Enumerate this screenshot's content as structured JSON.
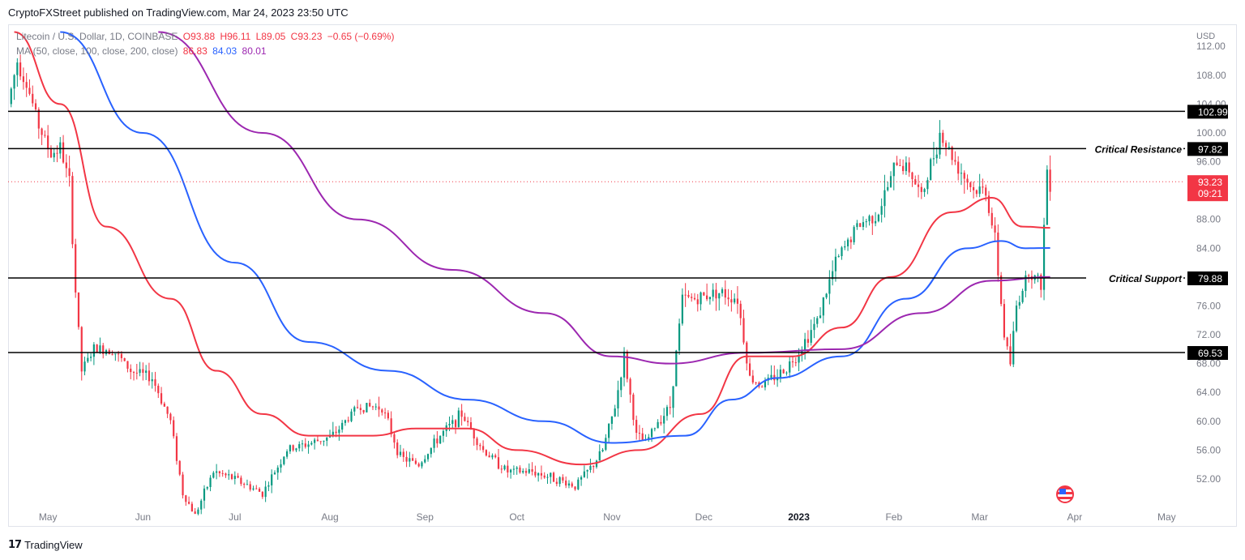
{
  "publisher_line": "CryptoFXStreet published on TradingView.com, Mar 24, 2023 23:50 UTC",
  "legend": {
    "symbol": "Litecoin / U.S. Dollar, 1D, COINBASE",
    "open": "O93.88",
    "high": "H96.11",
    "low": "L89.05",
    "close": "C93.23",
    "change": "−0.65 (−0.69%)",
    "ma_label": "MA (50, close, 100, close, 200, close)",
    "ma50": "86.83",
    "ma100": "84.03",
    "ma200": "80.01"
  },
  "axis_unit": "USD",
  "brand": "TradingView",
  "colors": {
    "up": "#089981",
    "down": "#f23645",
    "ma50": "#f23645",
    "ma100": "#2962ff",
    "ma200": "#9c27b0"
  },
  "chart_data": {
    "type": "candlestick",
    "title": "Litecoin / U.S. Dollar, 1D, COINBASE",
    "ylabel": "USD",
    "ylim": [
      48,
      114
    ],
    "y_ticks": [
      52,
      56,
      60,
      64,
      68,
      72,
      76,
      80,
      84,
      88,
      92,
      96,
      100,
      104,
      108,
      112
    ],
    "x_ticks": [
      "May",
      "Jun",
      "Jul",
      "Aug",
      "Sep",
      "Oct",
      "Nov",
      "Dec",
      "2023",
      "Feb",
      "Mar",
      "Apr",
      "May"
    ],
    "horizontal_levels": [
      {
        "value": 102.99,
        "label": "102.99"
      },
      {
        "value": 97.82,
        "label": "97.82",
        "annotation": "Critical Resistance"
      },
      {
        "value": 79.88,
        "label": "79.88",
        "annotation": "Critical Support"
      },
      {
        "value": 69.53,
        "label": "69.53"
      }
    ],
    "last_price": {
      "value": 93.23,
      "label": "93.23",
      "countdown": "09:21"
    },
    "price_path": [
      [
        "2022-04-18",
        104
      ],
      [
        "2022-04-21",
        110
      ],
      [
        "2022-04-24",
        107
      ],
      [
        "2022-04-28",
        101
      ],
      [
        "2022-05-02",
        97
      ],
      [
        "2022-05-05",
        98
      ],
      [
        "2022-05-08",
        93
      ],
      [
        "2022-05-10",
        78
      ],
      [
        "2022-05-12",
        67
      ],
      [
        "2022-05-16",
        70
      ],
      [
        "2022-05-22",
        70
      ],
      [
        "2022-05-28",
        67
      ],
      [
        "2022-06-04",
        66
      ],
      [
        "2022-06-10",
        60
      ],
      [
        "2022-06-14",
        50
      ],
      [
        "2022-06-18",
        47
      ],
      [
        "2022-06-24",
        53
      ],
      [
        "2022-07-01",
        52
      ],
      [
        "2022-07-10",
        50
      ],
      [
        "2022-07-18",
        56
      ],
      [
        "2022-07-26",
        57
      ],
      [
        "2022-08-02",
        58
      ],
      [
        "2022-08-10",
        62
      ],
      [
        "2022-08-18",
        62
      ],
      [
        "2022-08-24",
        55
      ],
      [
        "2022-08-30",
        54
      ],
      [
        "2022-09-06",
        58
      ],
      [
        "2022-09-13",
        61
      ],
      [
        "2022-09-20",
        56
      ],
      [
        "2022-09-28",
        53
      ],
      [
        "2022-10-06",
        53
      ],
      [
        "2022-10-14",
        52
      ],
      [
        "2022-10-20",
        51
      ],
      [
        "2022-10-26",
        54
      ],
      [
        "2022-10-29",
        56
      ],
      [
        "2022-11-02",
        62
      ],
      [
        "2022-11-05",
        69
      ],
      [
        "2022-11-09",
        58
      ],
      [
        "2022-11-12",
        57
      ],
      [
        "2022-11-16",
        60
      ],
      [
        "2022-11-20",
        62
      ],
      [
        "2022-11-24",
        77
      ],
      [
        "2022-11-29",
        77
      ],
      [
        "2022-12-05",
        78
      ],
      [
        "2022-12-12",
        77
      ],
      [
        "2022-12-16",
        66
      ],
      [
        "2022-12-20",
        65
      ],
      [
        "2022-12-27",
        67
      ],
      [
        "2022-12-31",
        69
      ],
      [
        "2023-01-07",
        74
      ],
      [
        "2023-01-13",
        82
      ],
      [
        "2023-01-20",
        87
      ],
      [
        "2023-01-27",
        89
      ],
      [
        "2023-02-02",
        96
      ],
      [
        "2023-02-06",
        95
      ],
      [
        "2023-02-10",
        91
      ],
      [
        "2023-02-16",
        100
      ],
      [
        "2023-02-21",
        96
      ],
      [
        "2023-02-27",
        92
      ],
      [
        "2023-03-03",
        92
      ],
      [
        "2023-03-06",
        85
      ],
      [
        "2023-03-09",
        72
      ],
      [
        "2023-03-11",
        68
      ],
      [
        "2023-03-13",
        76
      ],
      [
        "2023-03-17",
        81
      ],
      [
        "2023-03-21",
        79
      ],
      [
        "2023-03-23",
        95
      ],
      [
        "2023-03-24",
        93.23
      ]
    ],
    "series": [
      {
        "name": "MA 50",
        "value": 86.83,
        "points": [
          [
            "2022-04-20",
            114
          ],
          [
            "2022-05-05",
            104
          ],
          [
            "2022-05-20",
            87
          ],
          [
            "2022-06-10",
            77
          ],
          [
            "2022-06-25",
            67
          ],
          [
            "2022-07-10",
            61
          ],
          [
            "2022-07-25",
            58
          ],
          [
            "2022-08-15",
            58
          ],
          [
            "2022-08-29",
            59
          ],
          [
            "2022-09-15",
            59
          ],
          [
            "2022-10-01",
            56
          ],
          [
            "2022-10-22",
            54
          ],
          [
            "2022-11-10",
            56
          ],
          [
            "2022-11-30",
            61
          ],
          [
            "2022-12-15",
            69
          ],
          [
            "2022-12-30",
            69
          ],
          [
            "2023-01-15",
            73
          ],
          [
            "2023-01-31",
            80
          ],
          [
            "2023-02-20",
            89
          ],
          [
            "2023-03-05",
            91
          ],
          [
            "2023-03-15",
            87
          ],
          [
            "2023-03-24",
            86.83
          ]
        ]
      },
      {
        "name": "MA 100",
        "value": 84.03,
        "points": [
          [
            "2022-05-05",
            114
          ],
          [
            "2022-06-01",
            100
          ],
          [
            "2022-07-01",
            82
          ],
          [
            "2022-07-25",
            71
          ],
          [
            "2022-08-20",
            67
          ],
          [
            "2022-09-15",
            63
          ],
          [
            "2022-10-10",
            60
          ],
          [
            "2022-11-01",
            57
          ],
          [
            "2022-11-25",
            58
          ],
          [
            "2022-12-10",
            63
          ],
          [
            "2022-12-25",
            66
          ],
          [
            "2023-01-15",
            69
          ],
          [
            "2023-02-05",
            77
          ],
          [
            "2023-02-25",
            84
          ],
          [
            "2023-03-08",
            85
          ],
          [
            "2023-03-16",
            84
          ],
          [
            "2023-03-24",
            84.03
          ]
        ]
      },
      {
        "name": "MA 200",
        "value": 80.01,
        "points": [
          [
            "2022-06-06",
            114
          ],
          [
            "2022-07-10",
            100
          ],
          [
            "2022-08-10",
            88
          ],
          [
            "2022-09-10",
            81
          ],
          [
            "2022-10-10",
            75
          ],
          [
            "2022-11-01",
            69
          ],
          [
            "2022-11-20",
            68
          ],
          [
            "2022-12-15",
            69.5
          ],
          [
            "2023-01-15",
            70
          ],
          [
            "2023-02-10",
            75
          ],
          [
            "2023-03-05",
            79.5
          ],
          [
            "2023-03-24",
            80.01
          ]
        ]
      }
    ]
  }
}
